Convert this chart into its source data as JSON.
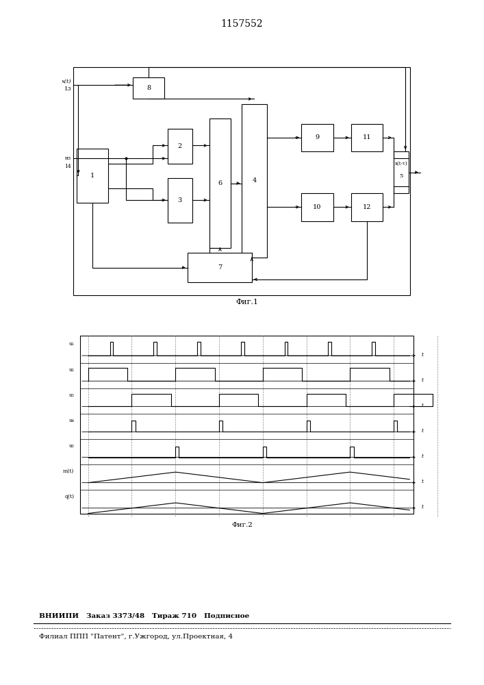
{
  "title": "1157552",
  "fig1_caption": "Фиг.1",
  "fig2_caption": "Фиг.2",
  "footer_line1": "ВНИИПИ   Заказ 3373/48   Тираж 710   Подписное",
  "footer_line2": "Филиал ППП \"Патент\", г.Ужгород, ул.Проектная, 4",
  "bg_color": "#ffffff",
  "lc": "#000000"
}
